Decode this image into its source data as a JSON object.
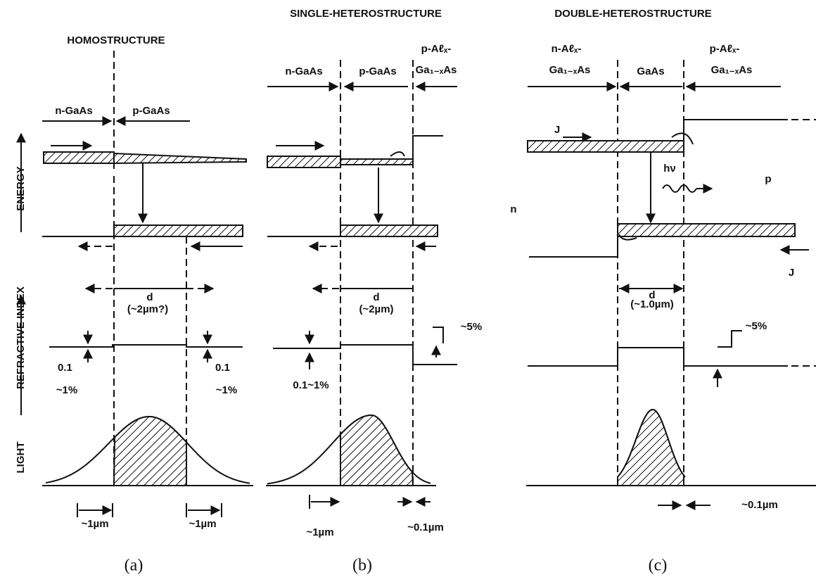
{
  "axis_labels": [
    "ENERGY",
    "REFRACTIVE INDEX",
    "LIGHT"
  ],
  "panels": [
    {
      "title": "HOMOSTRUCTURE",
      "labels": [
        "n-GaAs",
        "p-GaAs",
        "d",
        "(~2µm?)",
        "0.1",
        "~1%",
        "0.1",
        "~1%",
        "~1µm",
        "~1µm"
      ],
      "caption": "(a)"
    },
    {
      "title": "SINGLE-HETEROSTRUCTURE",
      "labels": [
        "n-GaAs",
        "p-GaAs",
        "p-Aℓₓ-",
        "Ga₁₋ₓAs",
        "d",
        "(~2µm)",
        "~5%",
        "0.1~1%",
        "~1µm",
        "~0.1µm"
      ],
      "caption": "(b)"
    },
    {
      "title": "DOUBLE-HETEROSTRUCTURE",
      "labels": [
        "n-Aℓₓ-",
        "Ga₁₋ₓAs",
        "GaAs",
        "p-Aℓₓ-",
        "Ga₁₋ₓAs",
        "J",
        "hν",
        "p",
        "n",
        "J",
        "d",
        "(~1.0µm)",
        "~5%",
        "~0.1µm"
      ],
      "caption": "(c)"
    }
  ]
}
